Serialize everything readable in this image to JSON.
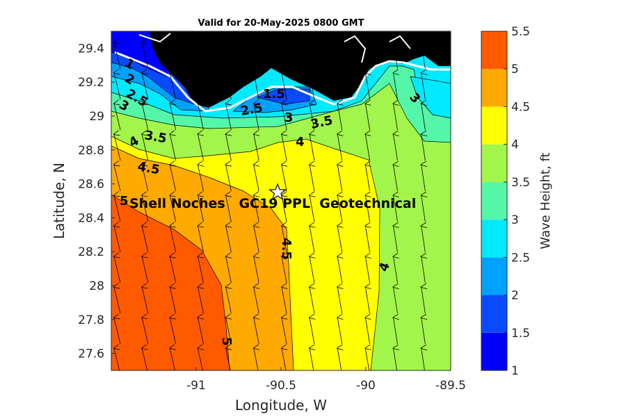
{
  "title": "Valid for 20-May-2025 0800 GMT",
  "xlabel": "Longitude, W",
  "ylabel": "Latitude, N",
  "xticks": [
    "-91",
    "-90.5",
    "-90",
    "-89.5"
  ],
  "yticks": [
    "29.4",
    "29.2",
    "29",
    "28.8",
    "28.6",
    "28.4",
    "28.2",
    "28",
    "27.8",
    "27.6"
  ],
  "colorbar": {
    "label": "Wave Height, ft",
    "ticks": [
      "5.5",
      "5",
      "4.5",
      "4",
      "3.5",
      "3",
      "2.5",
      "2",
      "1.5",
      "1"
    ],
    "colors": [
      "#0000ff",
      "#0a4aff",
      "#00a2ff",
      "#00eaff",
      "#54f7a8",
      "#a2f54a",
      "#ffff00",
      "#ffaa00",
      "#ff5a00"
    ]
  },
  "site": {
    "label": "Shell Noches   GC19 PPL  Geotechnical",
    "lon": -90.52,
    "lat": 28.55
  },
  "contour_labels": [
    "1",
    "2",
    "2.5",
    "3",
    "3.5",
    "4",
    "4.5",
    "5",
    "1.5",
    "2.5",
    "3",
    "3.5",
    "4",
    "3",
    "4.5",
    "4",
    "5"
  ],
  "chart_data": {
    "type": "heatmap",
    "variable": "Wave Height, ft",
    "xlim": [
      -91.5,
      -89.5
    ],
    "ylim": [
      27.5,
      29.5
    ],
    "levels": [
      1,
      1.5,
      2,
      2.5,
      3,
      3.5,
      4,
      4.5,
      5,
      5.5
    ],
    "wave_direction": "from south (arrows pointing north, slight NNW)"
  }
}
